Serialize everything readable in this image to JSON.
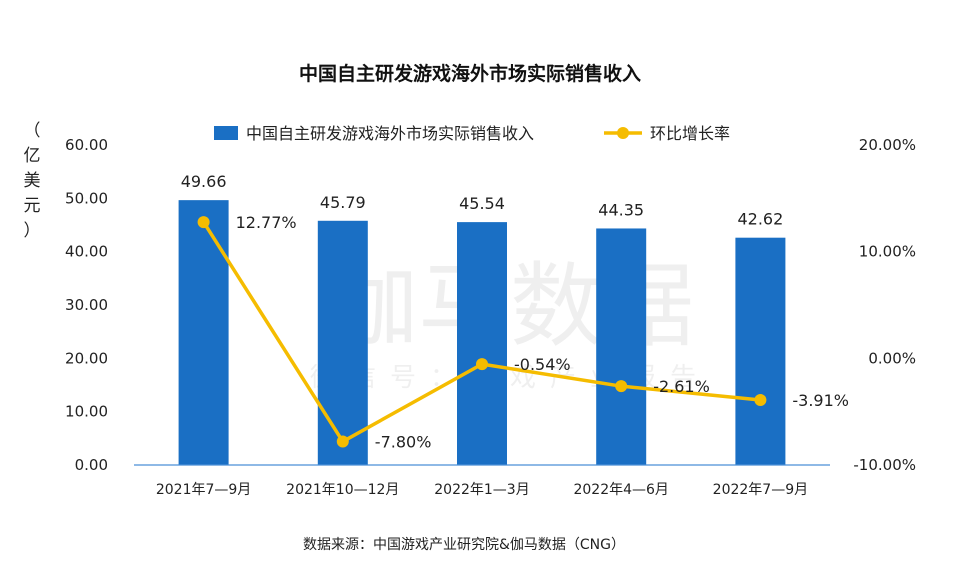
{
  "chart_data": {
    "type": "bar",
    "title": "中国自主研发游戏海外市场实际销售收入",
    "categories": [
      "2021年7—9月",
      "2021年10—12月",
      "2022年1—3月",
      "2022年4—6月",
      "2022年7—9月"
    ],
    "series": [
      {
        "name": "中国自主研发游戏海外市场实际销售收入",
        "type": "bar",
        "axis": "left",
        "values": [
          49.66,
          45.79,
          45.54,
          44.35,
          42.62
        ],
        "labels": [
          "49.66",
          "45.79",
          "45.54",
          "44.35",
          "42.62"
        ],
        "color": "#1a6fc4"
      },
      {
        "name": "环比增长率",
        "type": "line",
        "axis": "right",
        "values": [
          12.77,
          -7.8,
          -0.54,
          -2.61,
          -3.91
        ],
        "labels": [
          "12.77%",
          "-7.80%",
          "-0.54%",
          "-2.61%",
          "-3.91%"
        ],
        "color": "#f5bc00"
      }
    ],
    "ylabel": "（亿美元）",
    "ylim": [
      0,
      60
    ],
    "yticks": [
      "0.00",
      "10.00",
      "20.00",
      "30.00",
      "40.00",
      "50.00",
      "60.00"
    ],
    "y2lim": [
      -10,
      20
    ],
    "y2ticks": [
      "-10.00%",
      "0.00%",
      "10.00%",
      "20.00%"
    ],
    "legend": "top",
    "grid": false
  },
  "source_note": "数据来源：中国游戏产业研究院&伽马数据（CNG）",
  "watermark": {
    "main": "伽马数据",
    "sub": "微信号：游戏产业报告"
  }
}
